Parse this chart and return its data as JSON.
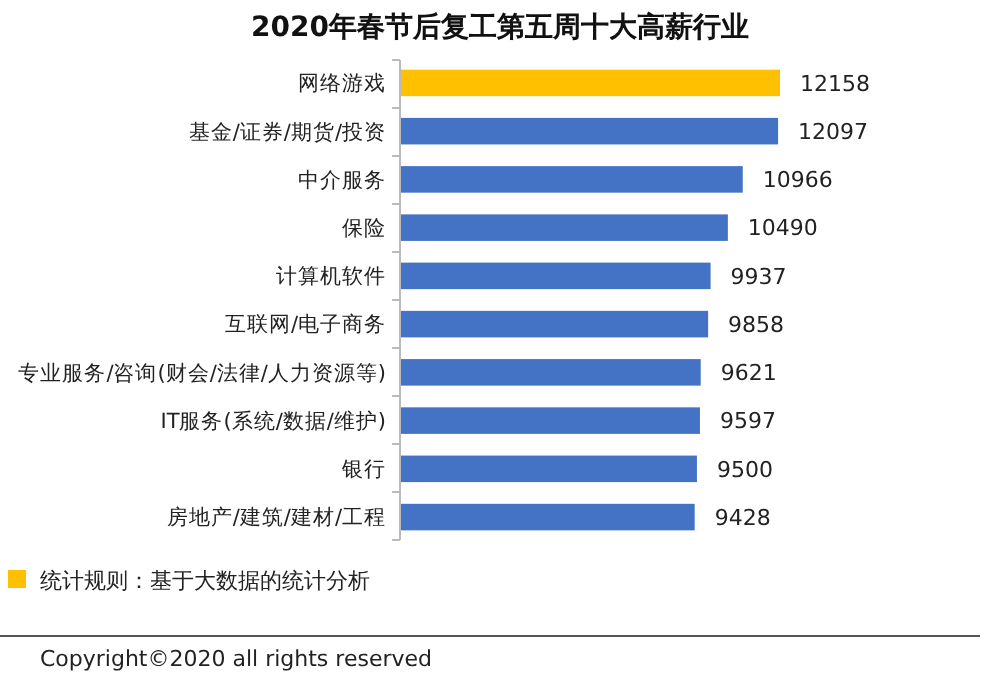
{
  "chart_data": {
    "type": "bar",
    "orientation": "horizontal",
    "title": "2020年春节后复工第五周十大高薪行业",
    "categories": [
      "网络游戏",
      "基金/证券/期货/投资",
      "中介服务",
      "保险",
      "计算机软件",
      "互联网/电子商务",
      "专业服务/咨询(财会/法律/人力资源等)",
      "IT服务(系统/数据/维护)",
      "银行",
      "房地产/建筑/建材/工程"
    ],
    "values": [
      12158,
      12097,
      10966,
      10490,
      9937,
      9858,
      9621,
      9597,
      9500,
      9428
    ],
    "colors": [
      "#ffc000",
      "#4472c4",
      "#4472c4",
      "#4472c4",
      "#4472c4",
      "#4472c4",
      "#4472c4",
      "#4472c4",
      "#4472c4",
      "#4472c4"
    ],
    "data_labels": true,
    "annotations": [
      "统计规则：基于大数据的统计分析",
      "Copyright©2020 all rights reserved"
    ]
  }
}
